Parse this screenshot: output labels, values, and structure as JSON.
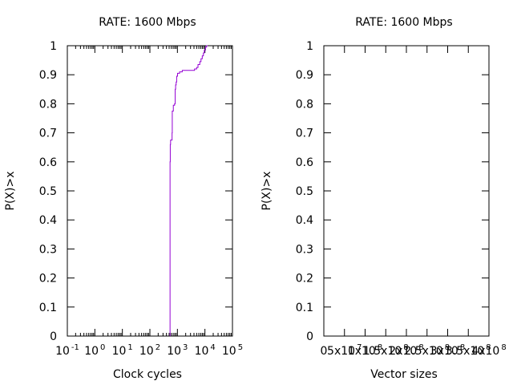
{
  "chart_data": [
    {
      "type": "line",
      "title": "RATE: 1600 Mbps",
      "xlabel": "Clock cycles",
      "ylabel": "P(X)>x",
      "xscale": "log",
      "xlim": [
        0.1,
        100000
      ],
      "ylim": [
        0,
        1
      ],
      "x_ticks": [
        {
          "value": 0.1,
          "base": "10",
          "exp": "-1"
        },
        {
          "value": 1,
          "base": "10",
          "exp": "0"
        },
        {
          "value": 10,
          "base": "10",
          "exp": "1"
        },
        {
          "value": 100,
          "base": "10",
          "exp": "2"
        },
        {
          "value": 1000,
          "base": "10",
          "exp": "3"
        },
        {
          "value": 10000,
          "base": "10",
          "exp": "4"
        },
        {
          "value": 100000,
          "base": "10",
          "exp": "5"
        }
      ],
      "y_ticks": [
        "0",
        "0.1",
        "0.2",
        "0.3",
        "0.4",
        "0.5",
        "0.6",
        "0.7",
        "0.8",
        "0.9",
        "1"
      ],
      "grid": false,
      "series": [
        {
          "color": "#9400d3",
          "points": [
            [
              540,
              0
            ],
            [
              540,
              0.6
            ],
            [
              550,
              0.6
            ],
            [
              550,
              0.66
            ],
            [
              565,
              0.66
            ],
            [
              565,
              0.675
            ],
            [
              640,
              0.675
            ],
            [
              640,
              0.7
            ],
            [
              650,
              0.7
            ],
            [
              650,
              0.775
            ],
            [
              710,
              0.775
            ],
            [
              710,
              0.795
            ],
            [
              790,
              0.795
            ],
            [
              790,
              0.8
            ],
            [
              830,
              0.8
            ],
            [
              830,
              0.85
            ],
            [
              860,
              0.85
            ],
            [
              860,
              0.865
            ],
            [
              900,
              0.865
            ],
            [
              900,
              0.875
            ],
            [
              940,
              0.875
            ],
            [
              940,
              0.895
            ],
            [
              1010,
              0.895
            ],
            [
              1010,
              0.905
            ],
            [
              1200,
              0.905
            ],
            [
              1200,
              0.91
            ],
            [
              1500,
              0.91
            ],
            [
              1500,
              0.915
            ],
            [
              4200,
              0.915
            ],
            [
              4200,
              0.92
            ],
            [
              5000,
              0.92
            ],
            [
              5000,
              0.925
            ],
            [
              5600,
              0.925
            ],
            [
              5600,
              0.935
            ],
            [
              6500,
              0.935
            ],
            [
              6500,
              0.945
            ],
            [
              7200,
              0.945
            ],
            [
              7200,
              0.955
            ],
            [
              8000,
              0.955
            ],
            [
              8000,
              0.965
            ],
            [
              8800,
              0.965
            ],
            [
              8800,
              0.975
            ],
            [
              9500,
              0.975
            ],
            [
              9500,
              0.985
            ],
            [
              10500,
              0.985
            ],
            [
              10500,
              0.995
            ],
            [
              11500,
              0.995
            ],
            [
              11500,
              1.0
            ],
            [
              12500,
              1.0
            ]
          ]
        }
      ]
    },
    {
      "type": "line",
      "title": "RATE: 1600 Mbps",
      "xlabel": "Vector sizes",
      "ylabel": "P(X)>x",
      "xscale": "linear",
      "ylim": [
        0,
        1
      ],
      "x_ticks": [
        {
          "base": "0",
          "exp": ""
        },
        {
          "base": "5x10",
          "exp": "7"
        },
        {
          "base": "1x10",
          "exp": "8"
        },
        {
          "base": "1.5x10",
          "exp": "8"
        },
        {
          "base": "2x10",
          "exp": "8"
        },
        {
          "base": "2.5x10",
          "exp": "8"
        },
        {
          "base": "3x10",
          "exp": "8"
        },
        {
          "base": "3.5x10",
          "exp": "8"
        },
        {
          "base": "4x10",
          "exp": "8"
        }
      ],
      "y_ticks": [
        "0",
        "0.1",
        "0.2",
        "0.3",
        "0.4",
        "0.5",
        "0.6",
        "0.7",
        "0.8",
        "0.9",
        "1"
      ],
      "grid": false,
      "series": []
    }
  ]
}
